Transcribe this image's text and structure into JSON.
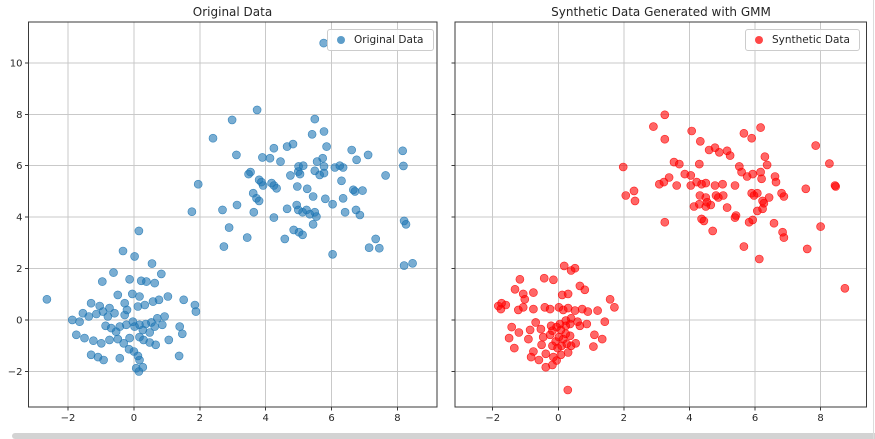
{
  "figure": {
    "background": "#ffffff",
    "grid_color": "#c9c9c9",
    "spine_color": "#3a3a3a",
    "tick_label_color": "#262626"
  },
  "chart_data": [
    {
      "type": "scatter",
      "title": "Original Data",
      "legend_label": "Original Data",
      "legend_position": "upper right",
      "color": "#1f77b4",
      "marker_alpha": 0.6,
      "grid": true,
      "xlim": [
        -3.2,
        9.2
      ],
      "ylim": [
        -3.39,
        11.59
      ],
      "xticks": [
        -2,
        0,
        2,
        4,
        6,
        8
      ],
      "yticks": [
        -2,
        0,
        2,
        4,
        6,
        8,
        10
      ],
      "ytick_labels_visible": true,
      "points": [
        [
          -2.64,
          0.8
        ],
        [
          -0.33,
          2.68
        ],
        [
          0.02,
          2.47
        ],
        [
          0.55,
          2.19
        ],
        [
          0.83,
          1.79
        ],
        [
          -0.62,
          1.84
        ],
        [
          -0.96,
          1.49
        ],
        [
          -0.13,
          1.58
        ],
        [
          0.22,
          1.52
        ],
        [
          0.38,
          1.49
        ],
        [
          0.63,
          1.43
        ],
        [
          1.03,
          0.91
        ],
        [
          1.51,
          0.78
        ],
        [
          1.85,
          0.58
        ],
        [
          1.88,
          0.32
        ],
        [
          -1.3,
          0.65
        ],
        [
          -1.04,
          0.54
        ],
        [
          -0.74,
          0.46
        ],
        [
          -0.49,
          0.97
        ],
        [
          -0.28,
          0.65
        ],
        [
          -0.21,
          0.39
        ],
        [
          -0.05,
          1.01
        ],
        [
          0.17,
          0.91
        ],
        [
          0.12,
          0.52
        ],
        [
          0.33,
          0.58
        ],
        [
          0.58,
          0.71
        ],
        [
          0.76,
          0.78
        ],
        [
          -1.55,
          0.26
        ],
        [
          -1.37,
          0.13
        ],
        [
          -1.87,
          0.0
        ],
        [
          -1.65,
          -0.07
        ],
        [
          -1.14,
          0.23
        ],
        [
          -0.94,
          0.32
        ],
        [
          -0.79,
          0.13
        ],
        [
          -0.59,
          0.26
        ],
        [
          -0.28,
          0.19
        ],
        [
          -0.43,
          -0.26
        ],
        [
          -0.23,
          -0.19
        ],
        [
          -0.54,
          -0.46
        ],
        [
          -0.69,
          -0.32
        ],
        [
          -0.86,
          -0.23
        ],
        [
          -0.03,
          -0.07
        ],
        [
          0.02,
          -0.26
        ],
        [
          0.17,
          -0.19
        ],
        [
          0.36,
          -0.16
        ],
        [
          0.53,
          -0.1
        ],
        [
          0.27,
          -0.39
        ],
        [
          0.48,
          -0.49
        ],
        [
          0.63,
          -0.26
        ],
        [
          0.86,
          -0.19
        ],
        [
          0.71,
          0.06
        ],
        [
          0.93,
          0.13
        ],
        [
          1.39,
          -0.26
        ],
        [
          1.47,
          -0.54
        ],
        [
          -1.75,
          -0.58
        ],
        [
          -1.5,
          -0.71
        ],
        [
          -1.23,
          -0.81
        ],
        [
          -0.99,
          -0.91
        ],
        [
          -0.74,
          -0.78
        ],
        [
          -0.49,
          -0.75
        ],
        [
          -0.31,
          -0.91
        ],
        [
          -0.13,
          -0.71
        ],
        [
          0.17,
          -0.67
        ],
        [
          0.29,
          -0.78
        ],
        [
          0.48,
          -0.88
        ],
        [
          0.66,
          -0.97
        ],
        [
          1.06,
          -0.78
        ],
        [
          1.37,
          -1.4
        ],
        [
          -1.3,
          -1.36
        ],
        [
          -1.09,
          -1.45
        ],
        [
          -0.92,
          -1.56
        ],
        [
          -0.43,
          -1.49
        ],
        [
          -0.15,
          -1.14
        ],
        [
          0.0,
          -1.23
        ],
        [
          0.12,
          -1.4
        ],
        [
          0.17,
          -1.56
        ],
        [
          0.07,
          -1.88
        ],
        [
          0.15,
          -2.01
        ],
        [
          0.27,
          -1.84
        ],
        [
          0.15,
          3.46
        ],
        [
          3.74,
          8.17
        ],
        [
          2.98,
          7.78
        ],
        [
          5.49,
          7.81
        ],
        [
          2.4,
          7.07
        ],
        [
          5.41,
          7.22
        ],
        [
          5.77,
          7.33
        ],
        [
          3.11,
          6.42
        ],
        [
          4.25,
          6.68
        ],
        [
          4.65,
          6.74
        ],
        [
          4.83,
          6.84
        ],
        [
          5.85,
          6.74
        ],
        [
          6.61,
          6.61
        ],
        [
          6.76,
          6.23
        ],
        [
          7.11,
          6.42
        ],
        [
          8.16,
          6.58
        ],
        [
          8.18,
          5.99
        ],
        [
          3.9,
          6.32
        ],
        [
          4.13,
          6.29
        ],
        [
          4.45,
          6.16
        ],
        [
          5.0,
          5.97
        ],
        [
          5.14,
          6.0
        ],
        [
          5.56,
          6.16
        ],
        [
          5.73,
          6.29
        ],
        [
          5.77,
          5.97
        ],
        [
          6.1,
          5.93
        ],
        [
          6.25,
          6.0
        ],
        [
          6.35,
          5.93
        ],
        [
          3.48,
          5.67
        ],
        [
          3.54,
          5.75
        ],
        [
          3.8,
          5.45
        ],
        [
          3.87,
          5.36
        ],
        [
          3.92,
          5.23
        ],
        [
          4.18,
          5.32
        ],
        [
          4.25,
          5.23
        ],
        [
          4.33,
          5.12
        ],
        [
          4.75,
          5.62
        ],
        [
          4.99,
          5.77
        ],
        [
          5.04,
          5.67
        ],
        [
          5.49,
          5.8
        ],
        [
          5.64,
          5.64
        ],
        [
          5.77,
          5.71
        ],
        [
          6.3,
          5.41
        ],
        [
          6.66,
          5.06
        ],
        [
          6.94,
          5.03
        ],
        [
          7.64,
          5.62
        ],
        [
          3.62,
          4.93
        ],
        [
          3.72,
          4.73
        ],
        [
          3.8,
          4.63
        ],
        [
          4.96,
          5.19
        ],
        [
          5.26,
          5.1
        ],
        [
          5.44,
          4.8
        ],
        [
          5.81,
          4.71
        ],
        [
          6.03,
          4.5
        ],
        [
          6.35,
          4.73
        ],
        [
          6.71,
          5.0
        ],
        [
          2.69,
          4.28
        ],
        [
          3.13,
          4.47
        ],
        [
          3.64,
          4.19
        ],
        [
          4.25,
          3.98
        ],
        [
          4.65,
          4.32
        ],
        [
          4.94,
          4.47
        ],
        [
          4.99,
          4.28
        ],
        [
          5.12,
          4.19
        ],
        [
          5.24,
          4.28
        ],
        [
          5.34,
          4.11
        ],
        [
          5.49,
          4.19
        ],
        [
          5.54,
          4.02
        ],
        [
          6.41,
          4.19
        ],
        [
          6.74,
          4.28
        ],
        [
          6.86,
          4.08
        ],
        [
          8.2,
          3.85
        ],
        [
          8.26,
          3.72
        ],
        [
          2.89,
          3.59
        ],
        [
          3.44,
          3.2
        ],
        [
          4.58,
          3.15
        ],
        [
          4.85,
          3.5
        ],
        [
          5.01,
          3.41
        ],
        [
          5.12,
          3.31
        ],
        [
          5.44,
          3.72
        ],
        [
          2.73,
          2.85
        ],
        [
          7.34,
          3.15
        ],
        [
          7.14,
          2.81
        ],
        [
          7.45,
          2.79
        ],
        [
          6.03,
          2.55
        ],
        [
          8.2,
          2.11
        ],
        [
          8.46,
          2.2
        ],
        [
          5.76,
          10.77
        ],
        [
          1.95,
          5.28
        ],
        [
          1.76,
          4.21
        ]
      ]
    },
    {
      "type": "scatter",
      "title": "Synthetic Data Generated with GMM",
      "legend_label": "Synthetic Data",
      "legend_position": "upper right",
      "color": "#ff0000",
      "marker_alpha": 0.6,
      "grid": true,
      "xlim": [
        -3.15,
        9.4
      ],
      "ylim": [
        -3.39,
        11.59
      ],
      "xticks": [
        -2,
        0,
        2,
        4,
        6,
        8
      ],
      "yticks": [
        -2,
        0,
        2,
        4,
        6,
        8,
        10
      ],
      "ytick_labels_visible": false,
      "points": [
        [
          0.18,
          2.1
        ],
        [
          0.51,
          2.01
        ],
        [
          -1.17,
          1.58
        ],
        [
          -0.43,
          1.62
        ],
        [
          -0.15,
          1.56
        ],
        [
          0.39,
          1.92
        ],
        [
          0.66,
          1.32
        ],
        [
          0.81,
          1.17
        ],
        [
          -1.07,
          1.01
        ],
        [
          -0.76,
          1.06
        ],
        [
          0.12,
          0.97
        ],
        [
          0.3,
          1.01
        ],
        [
          -1.6,
          0.58
        ],
        [
          -1.75,
          0.42
        ],
        [
          -1.22,
          0.39
        ],
        [
          -1.07,
          0.49
        ],
        [
          -0.76,
          0.42
        ],
        [
          -0.41,
          0.49
        ],
        [
          -0.25,
          0.42
        ],
        [
          0.02,
          0.49
        ],
        [
          0.15,
          0.39
        ],
        [
          0.3,
          0.46
        ],
        [
          0.51,
          0.36
        ],
        [
          0.73,
          0.42
        ],
        [
          0.9,
          0.32
        ],
        [
          1.2,
          0.36
        ],
        [
          1.58,
          0.8
        ],
        [
          1.71,
          0.49
        ],
        [
          -1.42,
          -0.28
        ],
        [
          -1.5,
          -0.71
        ],
        [
          -1.34,
          -1.1
        ],
        [
          -1.2,
          -0.49
        ],
        [
          -0.91,
          -0.75
        ],
        [
          -0.86,
          -0.39
        ],
        [
          -0.69,
          -0.1
        ],
        [
          -0.53,
          -0.36
        ],
        [
          -0.46,
          -0.67
        ],
        [
          -0.51,
          -0.97
        ],
        [
          -0.76,
          -1.23
        ],
        [
          -0.83,
          -1.45
        ],
        [
          -0.59,
          -1.56
        ],
        [
          -0.38,
          -1.32
        ],
        [
          -0.25,
          -0.58
        ],
        [
          -0.18,
          -0.42
        ],
        [
          -0.22,
          -0.23
        ],
        [
          -0.05,
          -0.28
        ],
        [
          0.08,
          -0.39
        ],
        [
          0.05,
          -0.16
        ],
        [
          0.23,
          -0.23
        ],
        [
          0.36,
          -0.16
        ],
        [
          0.23,
          -0.03
        ],
        [
          0.39,
          0.06
        ],
        [
          0.59,
          -0.07
        ],
        [
          0.66,
          -0.23
        ],
        [
          0.87,
          -0.16
        ],
        [
          0.23,
          -0.54
        ],
        [
          0.36,
          -0.62
        ],
        [
          0.15,
          -0.75
        ],
        [
          0.02,
          -0.67
        ],
        [
          -0.08,
          -0.84
        ],
        [
          -0.18,
          -1.01
        ],
        [
          -0.02,
          -1.1
        ],
        [
          0.1,
          -1.01
        ],
        [
          0.26,
          -0.93
        ],
        [
          0.39,
          -1.01
        ],
        [
          0.53,
          -0.91
        ],
        [
          0.3,
          -1.27
        ],
        [
          0.08,
          -1.36
        ],
        [
          -0.15,
          -1.45
        ],
        [
          -0.05,
          -1.58
        ],
        [
          -0.38,
          -1.84
        ],
        [
          -0.18,
          -1.75
        ],
        [
          1.1,
          -0.58
        ],
        [
          1.34,
          -0.75
        ],
        [
          1.07,
          -1.04
        ],
        [
          1.42,
          -0.07
        ],
        [
          0.29,
          -2.73
        ],
        [
          -1.02,
          0.8
        ],
        [
          -1.32,
          1.19
        ],
        [
          -1.83,
          0.54
        ],
        [
          -1.73,
          0.65
        ],
        [
          3.25,
          7.98
        ],
        [
          2.9,
          7.52
        ],
        [
          3.25,
          7.03
        ],
        [
          4.07,
          7.35
        ],
        [
          4.33,
          6.95
        ],
        [
          5.66,
          7.26
        ],
        [
          5.9,
          7.07
        ],
        [
          6.17,
          7.48
        ],
        [
          4.6,
          6.61
        ],
        [
          4.78,
          6.7
        ],
        [
          4.91,
          6.52
        ],
        [
          5.15,
          6.58
        ],
        [
          5.24,
          6.39
        ],
        [
          7.85,
          6.78
        ],
        [
          6.3,
          6.35
        ],
        [
          6.37,
          6.03
        ],
        [
          8.27,
          6.08
        ],
        [
          3.53,
          6.14
        ],
        [
          3.69,
          6.06
        ],
        [
          3.86,
          5.67
        ],
        [
          4.04,
          5.62
        ],
        [
          4.3,
          6.06
        ],
        [
          4.5,
          5.32
        ],
        [
          5.52,
          5.97
        ],
        [
          5.59,
          5.75
        ],
        [
          5.76,
          5.58
        ],
        [
          5.93,
          5.67
        ],
        [
          6.17,
          5.75
        ],
        [
          6.2,
          5.49
        ],
        [
          6.61,
          5.58
        ],
        [
          6.64,
          5.36
        ],
        [
          3.08,
          5.28
        ],
        [
          3.22,
          5.36
        ],
        [
          3.38,
          5.54
        ],
        [
          3.61,
          5.23
        ],
        [
          4.04,
          5.23
        ],
        [
          4.22,
          5.36
        ],
        [
          4.37,
          5.28
        ],
        [
          4.78,
          5.23
        ],
        [
          5.01,
          5.28
        ],
        [
          5.39,
          5.23
        ],
        [
          2.06,
          4.84
        ],
        [
          2.31,
          5.02
        ],
        [
          2.34,
          4.63
        ],
        [
          4.32,
          4.84
        ],
        [
          4.5,
          4.76
        ],
        [
          4.54,
          4.58
        ],
        [
          4.3,
          4.5
        ],
        [
          4.14,
          4.41
        ],
        [
          4.5,
          4.41
        ],
        [
          4.65,
          4.47
        ],
        [
          4.81,
          4.84
        ],
        [
          4.88,
          4.76
        ],
        [
          5.03,
          4.84
        ],
        [
          5.15,
          4.37
        ],
        [
          5.9,
          4.93
        ],
        [
          5.97,
          4.84
        ],
        [
          6.07,
          4.93
        ],
        [
          6.23,
          4.63
        ],
        [
          6.27,
          4.54
        ],
        [
          6.43,
          4.76
        ],
        [
          6.81,
          4.93
        ],
        [
          6.88,
          4.8
        ],
        [
          7.55,
          5.1
        ],
        [
          8.44,
          5.23
        ],
        [
          5.42,
          4.06
        ],
        [
          6.07,
          4.24
        ],
        [
          6.23,
          4.32
        ],
        [
          3.25,
          3.8
        ],
        [
          4.37,
          3.93
        ],
        [
          4.44,
          3.85
        ],
        [
          4.71,
          3.46
        ],
        [
          5.39,
          3.98
        ],
        [
          5.82,
          3.8
        ],
        [
          5.93,
          3.89
        ],
        [
          6.58,
          3.76
        ],
        [
          6.84,
          3.41
        ],
        [
          6.88,
          3.2
        ],
        [
          8.0,
          3.63
        ],
        [
          5.66,
          2.85
        ],
        [
          7.59,
          2.76
        ],
        [
          6.13,
          2.37
        ],
        [
          1.98,
          5.95
        ],
        [
          8.46,
          5.19
        ],
        [
          8.74,
          1.23
        ]
      ]
    }
  ]
}
